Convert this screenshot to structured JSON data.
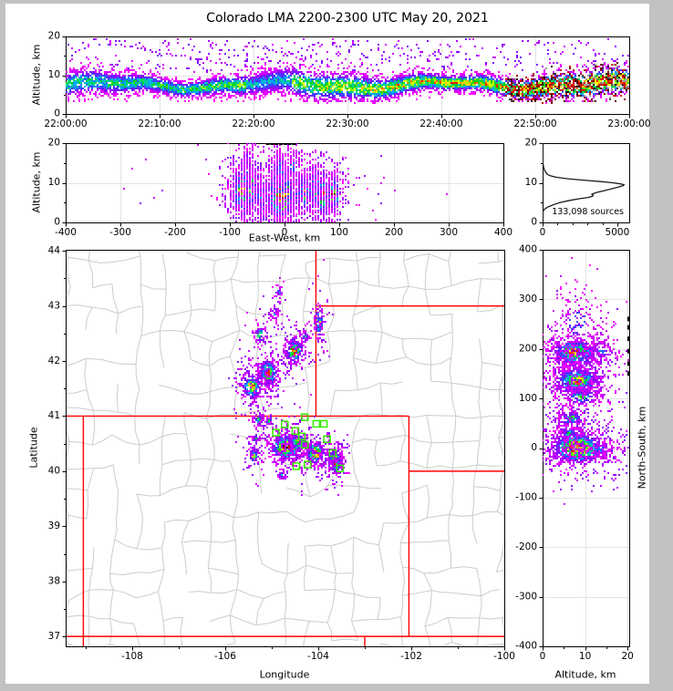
{
  "title": "Colorado LMA 2200-2300 UTC May 20, 2021",
  "colors": {
    "background": "#ffffff",
    "window_border": "#c2c2c2",
    "frame": "#000000",
    "grid": "#e3e3e3",
    "county_line": "#cccccc",
    "state_border": "#ff0000",
    "station_marker": "#33ee00",
    "histogram_line": "#1a1a1a",
    "tick_text": "#000000"
  },
  "colormap": [
    [
      0.0,
      "#ff00ff"
    ],
    [
      0.1,
      "#9600ff"
    ],
    [
      0.2,
      "#3c3cff"
    ],
    [
      0.3,
      "#00aaff"
    ],
    [
      0.4,
      "#00dc78"
    ],
    [
      0.5,
      "#00c800"
    ],
    [
      0.58,
      "#a0ff00"
    ],
    [
      0.66,
      "#ffff00"
    ],
    [
      0.74,
      "#ffa000"
    ],
    [
      0.82,
      "#ff2800"
    ],
    [
      0.89,
      "#c80000"
    ],
    [
      0.94,
      "#780000"
    ],
    [
      0.975,
      "#141414"
    ],
    [
      1.0,
      "#a0a0a0"
    ]
  ],
  "chart_data": [
    {
      "id": "time-altitude",
      "type": "scatter-density",
      "xlabel": "",
      "ylabel": "Altitude, km",
      "x_range": [
        0,
        3600
      ],
      "y_range": [
        0,
        20
      ],
      "x_ticks": [
        {
          "v": 0,
          "l": "22:00:00"
        },
        {
          "v": 600,
          "l": "22:10:00"
        },
        {
          "v": 1200,
          "l": "22:20:00"
        },
        {
          "v": 1800,
          "l": "22:30:00"
        },
        {
          "v": 2400,
          "l": "22:40:00"
        },
        {
          "v": 3000,
          "l": "22:50:00"
        },
        {
          "v": 3600,
          "l": "23:00:00"
        }
      ],
      "y_ticks": [
        {
          "v": 0,
          "l": "0"
        },
        {
          "v": 10,
          "l": "10"
        },
        {
          "v": 20,
          "l": "20"
        }
      ],
      "y_minor_ticks": [
        5,
        15
      ],
      "band": {
        "n": 7500,
        "alt_mean": 7.7,
        "alt_spread": 1.65,
        "alt_min": 3.2,
        "alt_max": 13.6,
        "density_ramp": [
          0.45,
          1.0
        ],
        "dip_window": [
          0.32,
          0.4
        ],
        "dark_tail_start": 0.78,
        "high_scatter_frac": 0.055,
        "high_alt_range": [
          11,
          19.5
        ]
      },
      "streaks": [
        [
          0.07,
          19.0,
          0.3,
          12.5,
          26
        ],
        [
          0.33,
          18.0,
          0.47,
          13.0,
          16
        ]
      ]
    },
    {
      "id": "east-west-altitude",
      "type": "scatter-density",
      "xlabel": "East-West, km",
      "ylabel": "Altitude, km",
      "x_range": [
        -400,
        400
      ],
      "y_range": [
        0,
        20
      ],
      "x_ticks": [
        {
          "v": -400,
          "l": "-400"
        },
        {
          "v": -300,
          "l": "-300"
        },
        {
          "v": -200,
          "l": "-200"
        },
        {
          "v": -100,
          "l": "-100"
        },
        {
          "v": 0,
          "l": "0"
        },
        {
          "v": 100,
          "l": "100"
        },
        {
          "v": 200,
          "l": "200"
        },
        {
          "v": 300,
          "l": "300"
        },
        {
          "v": 400,
          "l": "400"
        }
      ],
      "y_ticks": [
        {
          "v": 0,
          "l": "0"
        },
        {
          "v": 10,
          "l": "10"
        },
        {
          "v": 20,
          "l": "20"
        }
      ],
      "y_minor_ticks": [
        5,
        15
      ],
      "clusters": [
        [
          -78,
          8,
          9,
          3.0,
          520,
          0.66
        ],
        [
          -62,
          9,
          5,
          2.8,
          260,
          0.56
        ],
        [
          -45,
          7,
          5,
          2.2,
          110,
          0.34
        ],
        [
          -8,
          7,
          12,
          3.0,
          850,
          1.0
        ],
        [
          -10,
          13.5,
          7,
          3.0,
          140,
          0.13
        ],
        [
          35,
          7.5,
          7,
          2.4,
          240,
          0.55
        ],
        [
          58,
          9,
          5,
          2.0,
          320,
          0.97
        ],
        [
          68,
          7,
          5,
          2.4,
          190,
          0.68
        ],
        [
          88,
          7.5,
          5,
          2.2,
          250,
          0.8
        ],
        [
          0,
          8,
          55,
          4.5,
          260,
          0.06
        ],
        [
          -70,
          14,
          6,
          2.6,
          70,
          0.1
        ],
        [
          15,
          14.5,
          9,
          2.8,
          80,
          0.09
        ]
      ],
      "clip_dashes_top_x": [
        -34,
        -26,
        -18,
        -10,
        -2,
        6,
        14
      ]
    },
    {
      "id": "altitude-histogram",
      "type": "line",
      "annotation": "133,098 sources",
      "x_range": [
        0,
        5800
      ],
      "y_range": [
        0,
        20
      ],
      "x_ticks": [
        {
          "v": 0,
          "l": "0"
        },
        {
          "v": 5000,
          "l": "5000"
        }
      ],
      "x_minor_ticks": [
        1000,
        2000,
        3000,
        4000
      ],
      "y_ticks": [
        {
          "v": 0,
          "l": "0"
        },
        {
          "v": 10,
          "l": "10"
        },
        {
          "v": 20,
          "l": "20"
        }
      ],
      "y_minor_ticks": [
        5,
        15
      ],
      "curve": [
        [
          0,
          0
        ],
        [
          2.5,
          0
        ],
        [
          3,
          60
        ],
        [
          3.5,
          180
        ],
        [
          4,
          420
        ],
        [
          4.5,
          750
        ],
        [
          5,
          1150
        ],
        [
          5.5,
          1750
        ],
        [
          6,
          2500
        ],
        [
          6.3,
          3050
        ],
        [
          6.6,
          3350
        ],
        [
          6.9,
          3380
        ],
        [
          7.1,
          3300
        ],
        [
          7.3,
          3420
        ],
        [
          7.6,
          3650
        ],
        [
          8,
          4100
        ],
        [
          8.5,
          4650
        ],
        [
          9,
          5150
        ],
        [
          9.3,
          5400
        ],
        [
          9.5,
          5450
        ],
        [
          9.7,
          5250
        ],
        [
          10,
          4700
        ],
        [
          10.3,
          3900
        ],
        [
          10.6,
          2900
        ],
        [
          11,
          1700
        ],
        [
          11.4,
          900
        ],
        [
          11.8,
          480
        ],
        [
          12.2,
          300
        ],
        [
          12.8,
          180
        ],
        [
          13.5,
          100
        ],
        [
          14.2,
          55
        ],
        [
          15,
          25
        ],
        [
          15.8,
          10
        ],
        [
          16.5,
          4
        ],
        [
          17.5,
          0
        ],
        [
          20,
          0
        ]
      ]
    },
    {
      "id": "plan-view-map",
      "type": "map-scatter",
      "xlabel": "Longitude",
      "ylabel": "Latitude",
      "x_range": [
        -109.43,
        -100.0
      ],
      "y_range": [
        36.82,
        44.02
      ],
      "x_ticks": [
        {
          "v": -108,
          "l": "-108"
        },
        {
          "v": -106,
          "l": "-106"
        },
        {
          "v": -104,
          "l": "-104"
        },
        {
          "v": -102,
          "l": "-102"
        },
        {
          "v": -100,
          "l": "-100"
        }
      ],
      "x_minor_ticks": [
        -109,
        -107,
        -105,
        -103,
        -101
      ],
      "y_ticks": [
        {
          "v": 37,
          "l": "37"
        },
        {
          "v": 38,
          "l": "38"
        },
        {
          "v": 39,
          "l": "39"
        },
        {
          "v": 40,
          "l": "40"
        },
        {
          "v": 41,
          "l": "41"
        },
        {
          "v": 42,
          "l": "42"
        },
        {
          "v": 43,
          "l": "43"
        },
        {
          "v": 44,
          "l": "44"
        }
      ],
      "y_minor_ticks": [
        37.5,
        38.5,
        39.5,
        40.5,
        41.5,
        42.5,
        43.5
      ],
      "state_borders": [
        [
          [
            -109.43,
            41
          ],
          [
            -102.05,
            41
          ]
        ],
        [
          [
            -102.05,
            41
          ],
          [
            -102.05,
            37
          ]
        ],
        [
          [
            -109.05,
            41
          ],
          [
            -109.05,
            36.82
          ]
        ],
        [
          [
            -109.43,
            37
          ],
          [
            -100,
            37
          ]
        ],
        [
          [
            -102.05,
            40
          ],
          [
            -100,
            40
          ]
        ],
        [
          [
            -104.05,
            44.02
          ],
          [
            -104.05,
            41
          ]
        ],
        [
          [
            -104.05,
            43
          ],
          [
            -100,
            43
          ]
        ],
        [
          [
            -103.0,
            37
          ],
          [
            -103.0,
            36.82
          ]
        ]
      ],
      "county_mesh": {
        "lon_step": 0.52,
        "lat_step": 0.47,
        "jitter": 0.11,
        "keep": 0.68
      },
      "stations": [
        [
          -104.29,
          40.98
        ],
        [
          -104.04,
          40.86
        ],
        [
          -103.88,
          40.86
        ],
        [
          -104.72,
          40.85
        ],
        [
          -104.91,
          40.7
        ],
        [
          -104.49,
          40.73
        ],
        [
          -104.35,
          40.63
        ],
        [
          -104.29,
          40.48
        ],
        [
          -103.81,
          40.58
        ],
        [
          -103.69,
          40.33
        ],
        [
          -104.47,
          40.09
        ],
        [
          -104.23,
          40.12
        ],
        [
          -103.53,
          40.05
        ]
      ],
      "clusters": [
        [
          -104.87,
          43.26,
          0.05,
          0.09,
          25,
          0.14
        ],
        [
          -104.97,
          42.89,
          0.05,
          0.08,
          28,
          0.16
        ],
        [
          -105.27,
          42.5,
          0.07,
          0.09,
          60,
          0.32
        ],
        [
          -104.0,
          42.72,
          0.05,
          0.17,
          90,
          0.4
        ],
        [
          -104.3,
          42.45,
          0.05,
          0.06,
          35,
          0.25
        ],
        [
          -104.53,
          42.2,
          0.09,
          0.11,
          240,
          0.78
        ],
        [
          -105.1,
          41.8,
          0.1,
          0.12,
          260,
          0.72
        ],
        [
          -105.45,
          41.55,
          0.11,
          0.12,
          240,
          0.66
        ],
        [
          -105.3,
          40.95,
          0.06,
          0.05,
          60,
          0.4
        ],
        [
          -105.08,
          40.92,
          0.04,
          0.04,
          30,
          0.35
        ],
        [
          -105.4,
          40.3,
          0.05,
          0.07,
          80,
          0.55
        ],
        [
          -104.7,
          40.45,
          0.16,
          0.11,
          500,
          0.97
        ],
        [
          -104.45,
          40.55,
          0.08,
          0.08,
          150,
          0.6
        ],
        [
          -104.08,
          40.35,
          0.1,
          0.09,
          320,
          0.92
        ],
        [
          -103.65,
          40.2,
          0.07,
          0.11,
          280,
          0.9
        ],
        [
          -104.8,
          39.95,
          0.04,
          0.04,
          20,
          0.2
        ],
        [
          -105.35,
          40.62,
          0.04,
          0.04,
          25,
          0.3
        ]
      ]
    },
    {
      "id": "north-south-altitude",
      "type": "scatter-density",
      "xlabel": "Altitude, km",
      "ylabel": "North-South, km",
      "x_range": [
        0,
        20.4
      ],
      "y_range": [
        -400,
        400
      ],
      "x_ticks": [
        {
          "v": 0,
          "l": "0"
        },
        {
          "v": 10,
          "l": "10"
        },
        {
          "v": 20,
          "l": "20"
        }
      ],
      "x_minor_ticks": [
        5,
        15
      ],
      "y_ticks": [
        {
          "v": 400,
          "l": "400"
        },
        {
          "v": 300,
          "l": "300"
        },
        {
          "v": 200,
          "l": "200"
        },
        {
          "v": 100,
          "l": "100"
        },
        {
          "v": 0,
          "l": "0"
        },
        {
          "v": -100,
          "l": "-100"
        },
        {
          "v": -200,
          "l": "-200"
        },
        {
          "v": -300,
          "l": "-300"
        },
        {
          "v": -400,
          "l": "-400"
        }
      ],
      "clusters": [
        [
          7.5,
          195,
          2.6,
          13,
          720,
          0.7
        ],
        [
          8,
          138,
          2.6,
          13,
          620,
          0.66
        ],
        [
          6.5,
          62,
          1.4,
          7,
          150,
          0.48
        ],
        [
          8,
          2,
          2.9,
          15,
          1050,
          1.0
        ],
        [
          6,
          32,
          1.4,
          6,
          80,
          0.3
        ],
        [
          8,
          255,
          3.3,
          42,
          150,
          0.07
        ],
        [
          13.5,
          195,
          2.3,
          9,
          60,
          0.11
        ],
        [
          13.5,
          0,
          2.6,
          8,
          70,
          0.11
        ],
        [
          9,
          105,
          2.0,
          8,
          120,
          0.4
        ]
      ],
      "clip_dashes_right_y": [
        155,
        175,
        200,
        225,
        248,
        265
      ]
    }
  ]
}
